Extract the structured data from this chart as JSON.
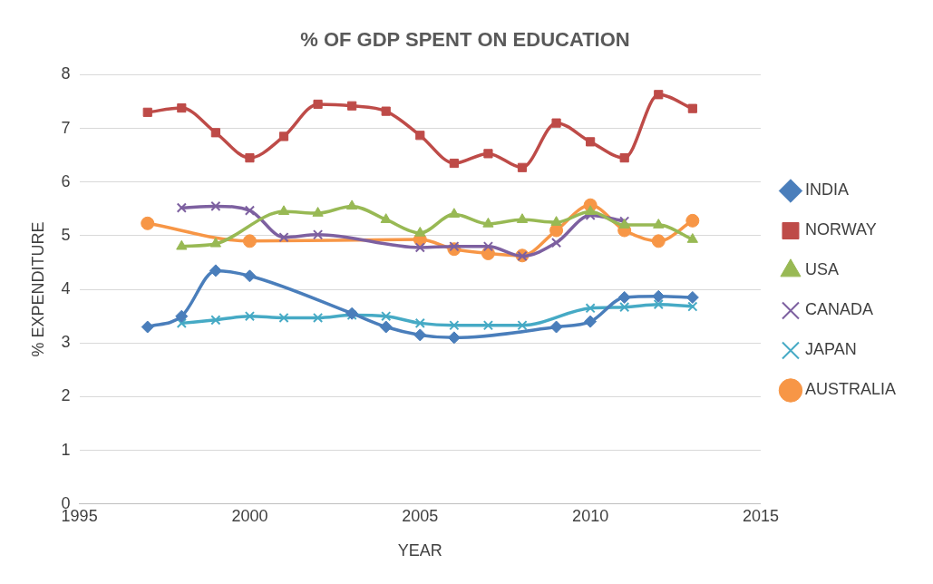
{
  "chart_data": {
    "type": "line",
    "title": "% OF GDP SPENT ON EDUCATION",
    "xlabel": "YEAR",
    "ylabel": "% EXPENDITURE",
    "xlim": [
      1995,
      2015
    ],
    "xticks": [
      1995,
      2000,
      2005,
      2010,
      2015
    ],
    "ylim": [
      0,
      8
    ],
    "yticks": [
      0,
      1,
      2,
      3,
      4,
      5,
      6,
      7,
      8
    ],
    "grid": "y",
    "legend": "right",
    "line_style": "solid",
    "series": [
      {
        "name": "INDIA",
        "color": "#4a7ebb",
        "marker": "diamond",
        "x": [
          1997,
          1998,
          1999,
          2000,
          2003,
          2004,
          2005,
          2006,
          2009,
          2010,
          2011,
          2012,
          2013
        ],
        "values": [
          3.3,
          3.5,
          4.35,
          4.25,
          3.55,
          3.3,
          3.15,
          3.1,
          3.3,
          3.4,
          3.85,
          3.87,
          3.85
        ]
      },
      {
        "name": "NORWAY",
        "color": "#be4b48",
        "marker": "square",
        "x": [
          1997,
          1998,
          1999,
          2000,
          2001,
          2002,
          2003,
          2004,
          2005,
          2006,
          2007,
          2008,
          2009,
          2010,
          2011,
          2012,
          2013
        ],
        "values": [
          7.3,
          7.38,
          6.92,
          6.45,
          6.85,
          7.45,
          7.42,
          7.32,
          6.87,
          6.35,
          6.53,
          6.27,
          7.1,
          6.75,
          6.45,
          7.63,
          7.37
        ]
      },
      {
        "name": "USA",
        "color": "#98b954",
        "marker": "triangle",
        "x": [
          1998,
          1999,
          2001,
          2002,
          2003,
          2004,
          2005,
          2006,
          2007,
          2008,
          2009,
          2010,
          2011,
          2012,
          2013
        ],
        "values": [
          4.8,
          4.85,
          5.45,
          5.42,
          5.55,
          5.3,
          5.05,
          5.4,
          5.22,
          5.3,
          5.25,
          5.45,
          5.2,
          5.2,
          4.93
        ]
      },
      {
        "name": "CANADA",
        "color": "#7d60a0",
        "marker": "cross",
        "x": [
          1998,
          1999,
          2000,
          2001,
          2002,
          2005,
          2006,
          2007,
          2008,
          2009,
          2010,
          2011
        ],
        "values": [
          5.52,
          5.55,
          5.47,
          4.97,
          5.02,
          4.78,
          4.8,
          4.8,
          4.62,
          4.87,
          5.38,
          5.27
        ]
      },
      {
        "name": "JAPAN",
        "color": "#46aac5",
        "marker": "cross",
        "x": [
          1998,
          1999,
          2000,
          2001,
          2002,
          2003,
          2004,
          2005,
          2006,
          2007,
          2008,
          2010,
          2011,
          2012,
          2013
        ],
        "values": [
          3.37,
          3.43,
          3.5,
          3.47,
          3.47,
          3.52,
          3.5,
          3.37,
          3.33,
          3.33,
          3.33,
          3.65,
          3.67,
          3.72,
          3.68
        ]
      },
      {
        "name": "AUSTRALIA",
        "color": "#f79646",
        "marker": "circle",
        "x": [
          1997,
          2000,
          2005,
          2006,
          2007,
          2008,
          2009,
          2010,
          2011,
          2012,
          2013
        ],
        "values": [
          5.23,
          4.9,
          4.93,
          4.75,
          4.67,
          4.63,
          5.1,
          5.57,
          5.1,
          4.9,
          5.28
        ]
      }
    ]
  }
}
